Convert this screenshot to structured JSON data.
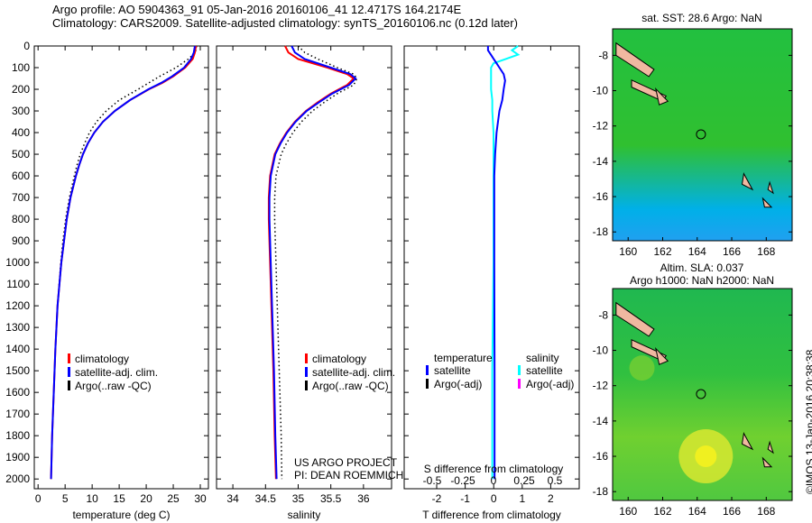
{
  "title_line1": "Argo profile: AO 5904363_91 05-Jan-2016 20160106_41 12.4717S 164.2174E",
  "title_line2": "Climatology: CARS2009. Satellite-adjusted climatology: synTS_20160106.nc (0.12d later)",
  "side_label": "©IMOS 13-Jan-2016 20:38:38",
  "credit1": "US ARGO PROJECT",
  "credit2": "PI: DEAN ROEMMICH",
  "colors": {
    "clim": "#ff0000",
    "sat": "#0000ff",
    "argo": "#000000",
    "sal_sat": "#00ffff",
    "sal_argo": "#ff00ff"
  },
  "chart_data": [
    {
      "type": "line",
      "xlabel": "temperature (deg C)",
      "xlim": [
        -0.7,
        31.5
      ],
      "ylim": [
        2045,
        0
      ],
      "xticks": [
        0,
        5,
        10,
        15,
        20,
        25,
        30
      ],
      "yticks": [
        0,
        100,
        200,
        300,
        400,
        500,
        600,
        700,
        800,
        900,
        1000,
        1100,
        1200,
        1300,
        1400,
        1500,
        1600,
        1700,
        1800,
        1900,
        2000
      ],
      "legend": [
        "climatology",
        "satellite-adj. clim.",
        "Argo(..raw -QC)"
      ],
      "depth": [
        0,
        30,
        60,
        100,
        140,
        170,
        200,
        250,
        300,
        350,
        400,
        450,
        500,
        550,
        600,
        700,
        800,
        900,
        1000,
        1200,
        1400,
        1600,
        1800,
        2000
      ],
      "series": [
        {
          "name": "climatology",
          "values": [
            29.2,
            29,
            28.6,
            27.2,
            25,
            23,
            20.5,
            17,
            14.2,
            12,
            10.4,
            9.2,
            8.3,
            7.6,
            7,
            6,
            5.3,
            4.8,
            4.3,
            3.6,
            3.2,
            2.9,
            2.6,
            2.4
          ]
        },
        {
          "name": "satellite-adj. clim.",
          "values": [
            29,
            28.8,
            28.3,
            27,
            24.8,
            22.8,
            20.4,
            17,
            14.2,
            12,
            10.4,
            9.2,
            8.3,
            7.6,
            7,
            6,
            5.3,
            4.8,
            4.3,
            3.6,
            3.2,
            2.9,
            2.6,
            2.4
          ]
        },
        {
          "name": "Argo(..raw -QC)",
          "values": [
            29.3,
            29.1,
            27.8,
            25.5,
            22.5,
            20.5,
            18.5,
            15,
            12.6,
            10.8,
            9.5,
            8.6,
            7.8,
            7.2,
            6.7,
            5.8,
            5.1,
            4.6,
            4.2,
            3.6,
            3.2,
            2.9,
            2.6,
            2.4
          ]
        }
      ]
    },
    {
      "type": "line",
      "xlabel": "salinity",
      "xlim": [
        33.75,
        36.43
      ],
      "ylim": [
        2045,
        0
      ],
      "xticks": [
        34,
        34.5,
        35,
        35.5,
        36
      ],
      "legend": [
        "climatology",
        "satellite-adj. clim.",
        "Argo(..raw -QC)"
      ],
      "depth": [
        0,
        30,
        60,
        100,
        130,
        150,
        180,
        220,
        260,
        300,
        350,
        400,
        450,
        500,
        600,
        700,
        800,
        1000,
        1200,
        1500,
        1800,
        2000
      ],
      "series": [
        {
          "name": "climatology",
          "values": [
            34.8,
            34.85,
            35.0,
            35.45,
            35.75,
            35.85,
            35.75,
            35.5,
            35.3,
            35.12,
            34.95,
            34.82,
            34.72,
            34.64,
            34.57,
            34.55,
            34.55,
            34.57,
            34.59,
            34.62,
            34.64,
            34.66
          ]
        },
        {
          "name": "satellite-adj. clim.",
          "values": [
            34.9,
            34.95,
            35.1,
            35.5,
            35.8,
            35.88,
            35.78,
            35.52,
            35.32,
            35.13,
            34.96,
            34.83,
            34.73,
            34.65,
            34.58,
            34.56,
            34.56,
            34.58,
            34.6,
            34.63,
            34.65,
            34.67
          ]
        },
        {
          "name": "Argo(..raw -QC)",
          "values": [
            35.0,
            35.1,
            35.3,
            35.6,
            35.85,
            35.9,
            35.85,
            35.6,
            35.4,
            35.22,
            35.05,
            34.92,
            34.82,
            34.74,
            34.66,
            34.64,
            34.64,
            34.66,
            34.68,
            34.71,
            34.74,
            34.75
          ]
        }
      ]
    },
    {
      "type": "line",
      "xlabel": "T difference from climatology",
      "xlabel2": "S difference from climatology",
      "xlim": [
        -3.14,
        3.0
      ],
      "xticks": [
        -2,
        -1,
        0,
        1,
        2
      ],
      "x2ticks": [
        "-0.5",
        "-0.25",
        "0",
        "0.25",
        "0.5"
      ],
      "ylim": [
        2045,
        0
      ],
      "legend_headers": [
        "temperature",
        "salinity"
      ],
      "legend": [
        "satellite",
        "Argo(-adj)",
        "satellite",
        "Argo(-adj)"
      ],
      "depth": [
        0,
        20,
        40,
        60,
        80,
        100,
        130,
        160,
        200,
        250,
        300,
        400,
        500,
        600,
        800,
        1000,
        1500,
        2000
      ],
      "series": [
        {
          "name": "T satellite",
          "values": [
            -0.2,
            -0.2,
            -0.1,
            0,
            0.1,
            0.2,
            0.35,
            0.4,
            0.35,
            0.3,
            0.2,
            0.1,
            0.05,
            0.02,
            0.02,
            0.02,
            0.03,
            0.03
          ]
        },
        {
          "name": "S satellite",
          "values": [
            0.2,
            0.15,
            0.2,
            0.1,
            0.0,
            -0.02,
            -0.02,
            -0.02,
            -0.02,
            -0.01,
            -0.01,
            0,
            0,
            0,
            0,
            0,
            -0.01,
            -0.01
          ]
        }
      ]
    },
    {
      "type": "heatmap",
      "title": "sat. SST: 28.6 Argo: NaN",
      "xticks": [
        160,
        162,
        164,
        166,
        168
      ],
      "yticks": [
        -8,
        -10,
        -12,
        -14,
        -16,
        -18
      ],
      "xlim": [
        159.1,
        169.5
      ],
      "ylim": [
        -18.5,
        -6.5
      ],
      "argo_pos": [
        164.2174,
        -12.4717
      ]
    },
    {
      "type": "heatmap",
      "title1": "Altim. SLA: 0.037",
      "title2": "Argo h1000: NaN h2000: NaN",
      "xticks": [
        160,
        162,
        164,
        166,
        168
      ],
      "yticks": [
        -8,
        -10,
        -12,
        -14,
        -16,
        -18
      ],
      "xlim": [
        159.1,
        169.5
      ],
      "ylim": [
        -18.5,
        -6.5
      ],
      "argo_pos": [
        164.2174,
        -12.4717
      ]
    }
  ]
}
